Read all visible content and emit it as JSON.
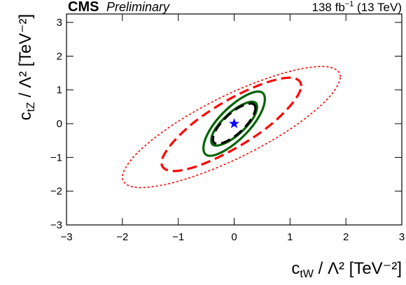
{
  "chart_data": {
    "type": "contour",
    "title": "CMS",
    "subtitle": "Preliminary",
    "lumi": {
      "main": "138 fb",
      "sup": "−1",
      "rest": " (13 TeV)"
    },
    "x_label": {
      "main": "c",
      "sub": "tW",
      "rest": " / Λ² [TeV⁻²]"
    },
    "y_label": {
      "main": "c",
      "sub": "tZ",
      "rest": " / Λ² [TeV⁻²]"
    },
    "xlim": [
      -3,
      3
    ],
    "ylim": [
      -3,
      3.25
    ],
    "xticks": [
      {
        "value": -3,
        "label": "−3"
      },
      {
        "value": -2,
        "label": "−2"
      },
      {
        "value": -1,
        "label": "−1"
      },
      0,
      1,
      2,
      3
    ],
    "yticks": [
      {
        "value": -3,
        "label": "−3"
      },
      {
        "value": -2,
        "label": "−2"
      },
      {
        "value": -1,
        "label": "−1"
      },
      0,
      1,
      2,
      3
    ],
    "series": [
      {
        "color": "#ff0000",
        "style": "dotted",
        "x": [
          1.9,
          1.64,
          0.93,
          -0.05,
          -1.03,
          -1.74,
          -2.0,
          -1.74,
          -1.03,
          -0.05,
          0.93,
          1.64
        ],
        "values": [
          1.39,
          1.69,
          1.52,
          0.92,
          0.04,
          -0.88,
          -1.59,
          -1.89,
          -1.72,
          -1.12,
          -0.24,
          0.68
        ]
      },
      {
        "color": "#ff0000",
        "style": "dashed",
        "x": [
          1.2,
          1.03,
          0.58,
          -0.05,
          -0.68,
          -1.13,
          -1.3,
          -1.13,
          -0.68,
          -0.05,
          0.58,
          1.03
        ],
        "values": [
          1.12,
          1.36,
          1.22,
          0.76,
          0.09,
          -0.62,
          -1.16,
          -1.4,
          -1.27,
          -0.8,
          -0.13,
          0.58
        ]
      },
      {
        "color": "#006400",
        "style": "solid",
        "x": [
          0.55,
          0.48,
          0.28,
          0,
          -0.28,
          -0.48,
          -0.55,
          -0.48,
          -0.28,
          0,
          0.28,
          0.48
        ],
        "values": [
          0.73,
          0.94,
          0.89,
          0.61,
          0.17,
          -0.32,
          -0.73,
          -0.94,
          -0.89,
          -0.61,
          -0.17,
          0.32
        ]
      },
      {
        "color": "#006400",
        "style": "solid",
        "x": [
          0.41,
          0.36,
          0.21,
          0,
          -0.21,
          -0.36,
          -0.41,
          -0.36,
          -0.21,
          0,
          0.21,
          0.36
        ],
        "values": [
          0.5,
          0.64,
          0.61,
          0.42,
          0.11,
          -0.22,
          -0.5,
          -0.64,
          -0.61,
          -0.42,
          -0.11,
          0.22
        ]
      },
      {
        "color": "#000000",
        "style": "dashed",
        "x": [
          0.38,
          0.33,
          0.19,
          0,
          -0.19,
          -0.33,
          -0.38,
          -0.33,
          -0.19,
          0,
          0.19,
          0.33
        ],
        "values": [
          0.46,
          0.59,
          0.56,
          0.39,
          0.11,
          -0.2,
          -0.46,
          -0.59,
          -0.56,
          -0.39,
          -0.11,
          0.2
        ]
      },
      {
        "color": "#0000ff",
        "style": "star",
        "x": [
          0
        ],
        "values": [
          0
        ]
      }
    ]
  }
}
